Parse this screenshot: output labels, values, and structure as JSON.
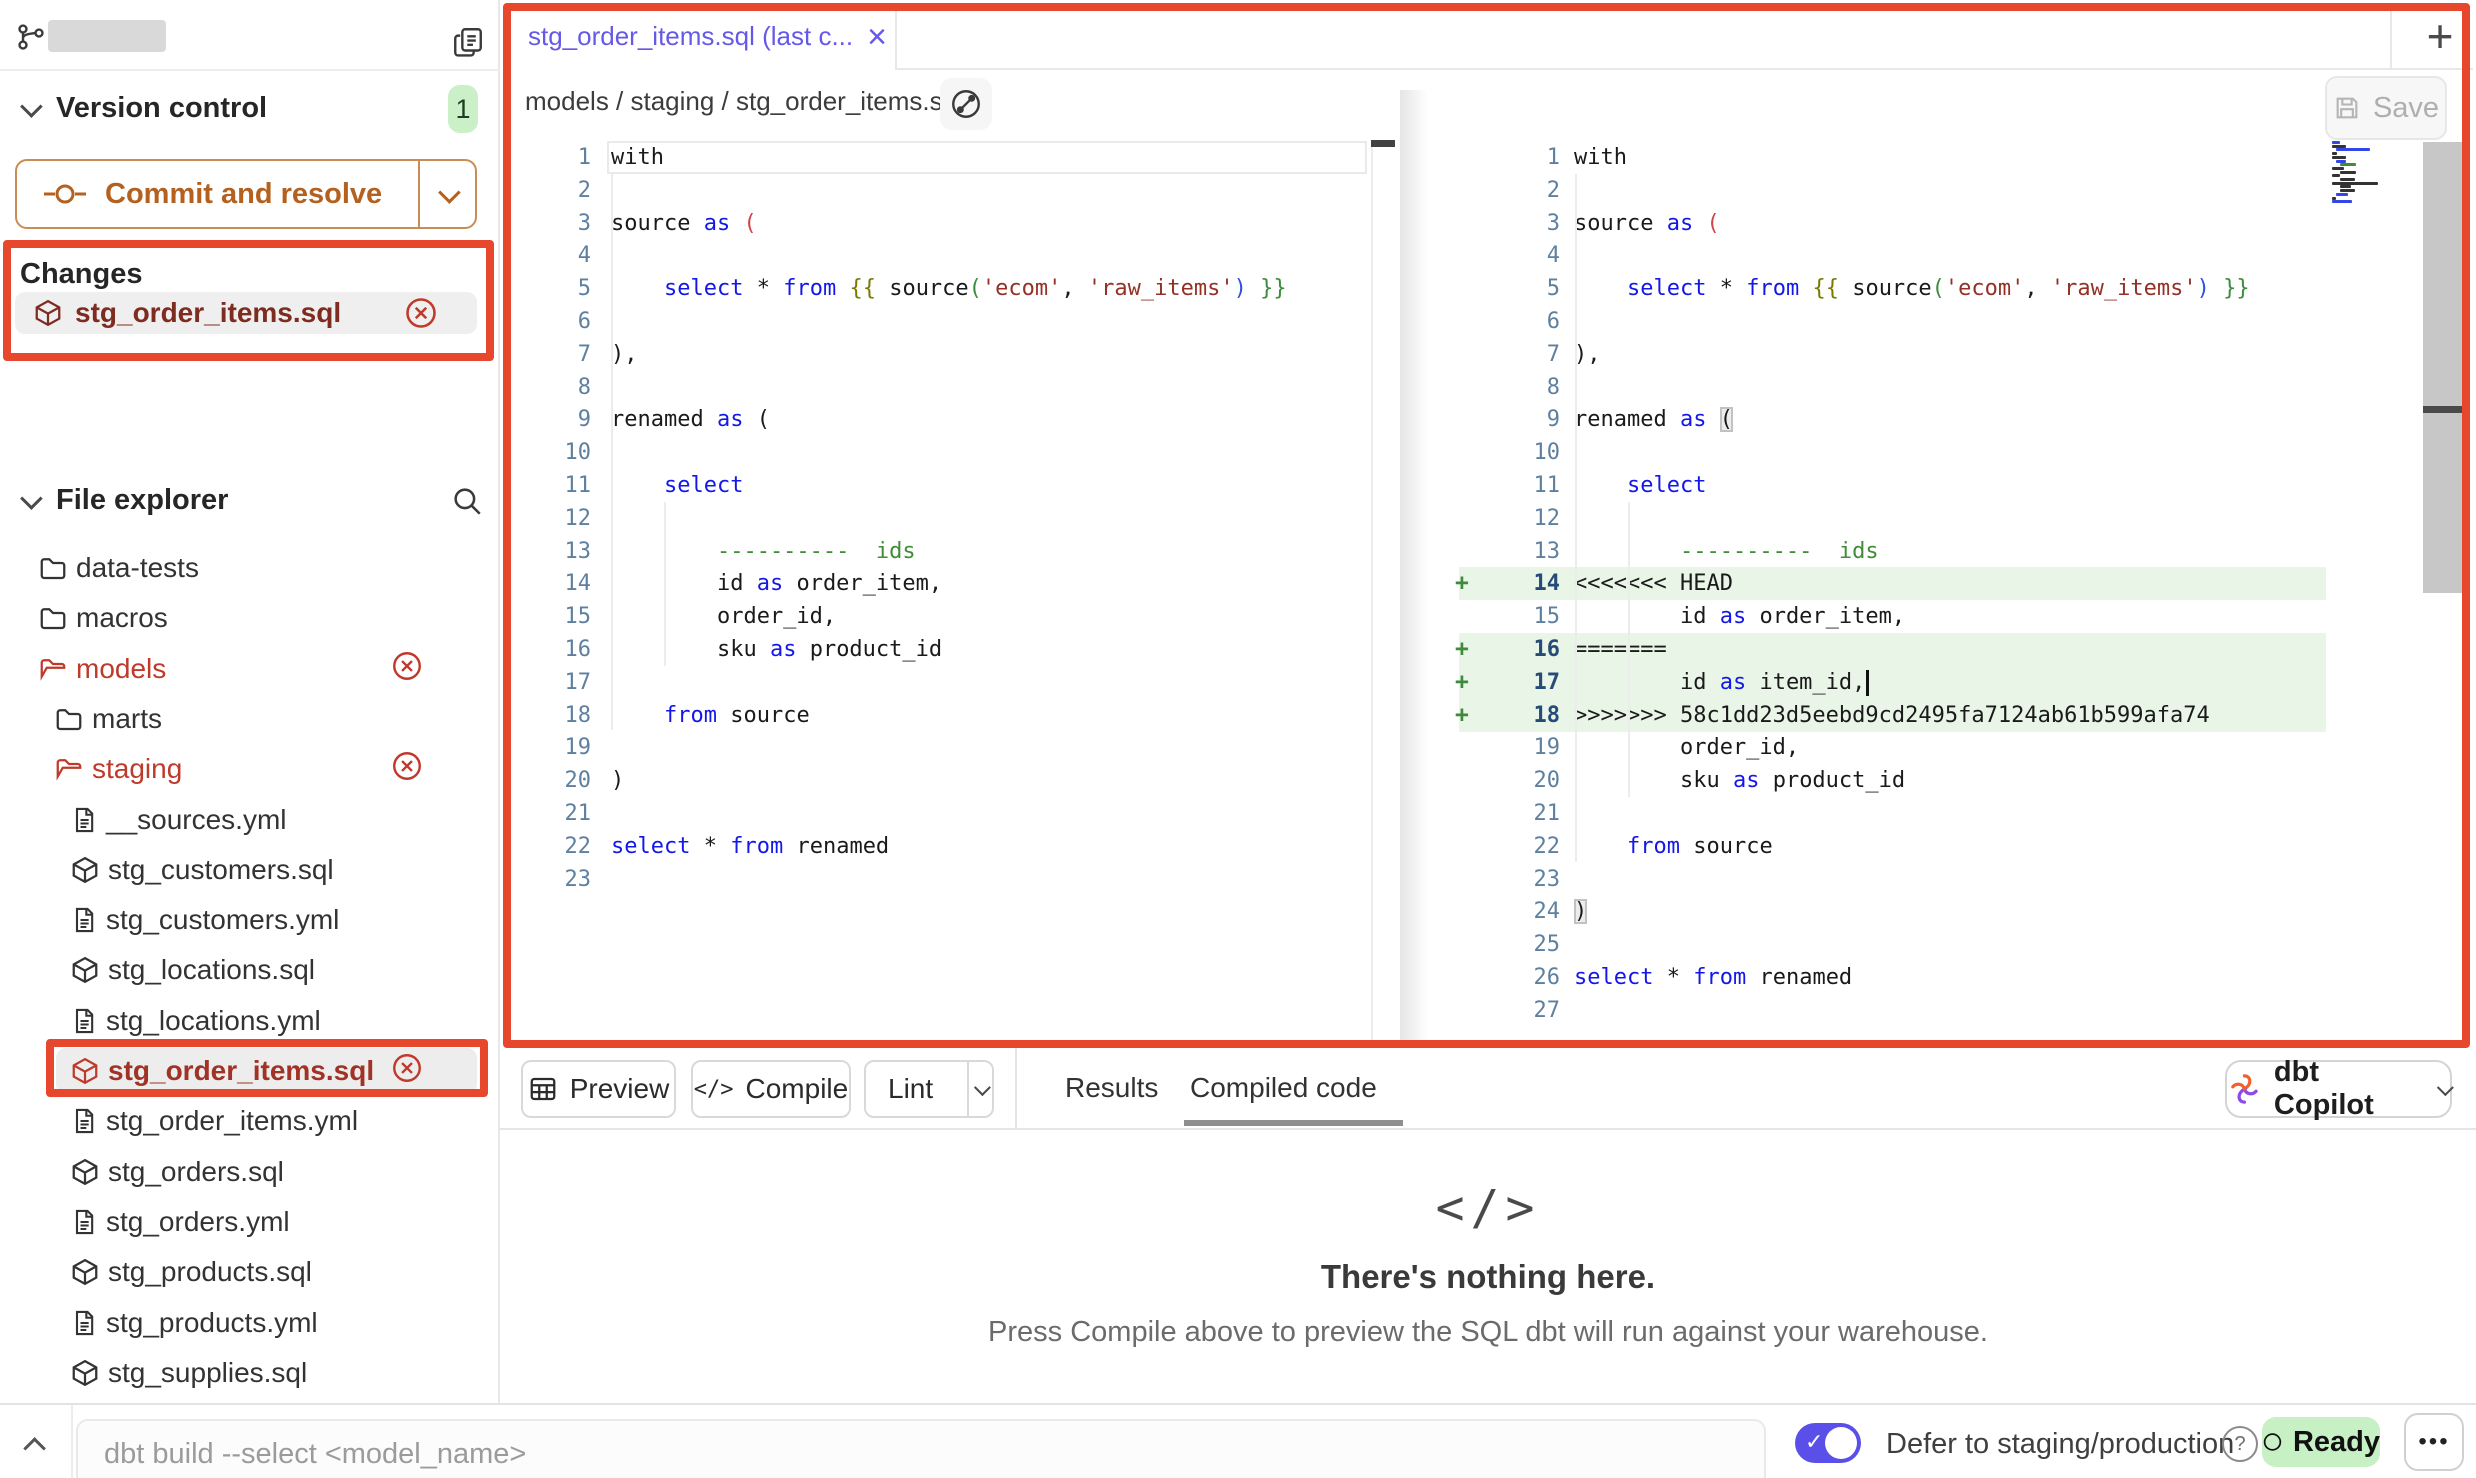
{
  "sidebar": {
    "version_control": {
      "title": "Version control",
      "badge": "1",
      "commit_button": "Commit and resolve"
    },
    "changes": {
      "label": "Changes",
      "file": "stg_order_items.sql"
    },
    "file_explorer": {
      "title": "File explorer",
      "items": [
        {
          "name": "data-tests",
          "type": "folder",
          "level": 1
        },
        {
          "name": "macros",
          "type": "folder",
          "level": 1
        },
        {
          "name": "models",
          "type": "folder-open",
          "level": 1,
          "modified": true
        },
        {
          "name": "marts",
          "type": "folder",
          "level": 2
        },
        {
          "name": "staging",
          "type": "folder-open",
          "level": 2,
          "modified": true
        },
        {
          "name": "__sources.yml",
          "type": "file",
          "level": 3
        },
        {
          "name": "stg_customers.sql",
          "type": "model",
          "level": 3
        },
        {
          "name": "stg_customers.yml",
          "type": "file",
          "level": 3
        },
        {
          "name": "stg_locations.sql",
          "type": "model",
          "level": 3
        },
        {
          "name": "stg_locations.yml",
          "type": "file",
          "level": 3
        },
        {
          "name": "stg_order_items.sql",
          "type": "model",
          "level": 3,
          "modified": true,
          "selected": true
        },
        {
          "name": "stg_order_items.yml",
          "type": "file",
          "level": 3
        },
        {
          "name": "stg_orders.sql",
          "type": "model",
          "level": 3
        },
        {
          "name": "stg_orders.yml",
          "type": "file",
          "level": 3
        },
        {
          "name": "stg_products.sql",
          "type": "model",
          "level": 3
        },
        {
          "name": "stg_products.yml",
          "type": "file",
          "level": 3
        },
        {
          "name": "stg_supplies.sql",
          "type": "model",
          "level": 3
        }
      ]
    }
  },
  "main": {
    "tab": {
      "title": "stg_order_items.sql (last c...",
      "close": "×"
    },
    "new_tab": "+",
    "breadcrumb": "models / staging / stg_order_items.sql",
    "save_label": "Save",
    "toolbar": {
      "preview": "Preview",
      "compile": "Compile",
      "compile_icon": "</>",
      "lint": "Lint",
      "tabs": [
        {
          "label": "Results",
          "active": false
        },
        {
          "label": "Compiled code",
          "active": true
        }
      ],
      "copilot": "dbt Copilot"
    },
    "empty": {
      "icon": "</>",
      "title": "There's nothing here.",
      "description": "Press Compile above to preview the SQL dbt will run against your warehouse."
    }
  },
  "editor": {
    "left": {
      "lines": [
        {
          "n": 1,
          "box": true,
          "t": [
            [
              "p",
              "with"
            ]
          ]
        },
        {
          "n": 2,
          "t": []
        },
        {
          "n": 3,
          "t": [
            [
              "p",
              "source "
            ],
            [
              "k",
              "as"
            ],
            [
              "p",
              " "
            ],
            [
              "r",
              "("
            ]
          ]
        },
        {
          "n": 4,
          "t": []
        },
        {
          "n": 5,
          "t": [
            [
              "p",
              "    "
            ],
            [
              "k",
              "select"
            ],
            [
              "p",
              " * "
            ],
            [
              "k",
              "from"
            ],
            [
              "p",
              " "
            ],
            [
              "j",
              "{{"
            ],
            [
              "p",
              " source"
            ],
            [
              "g",
              "("
            ],
            [
              "s",
              "'ecom'"
            ],
            [
              "p",
              ", "
            ],
            [
              "s",
              "'raw_items'"
            ],
            [
              "b",
              ")"
            ],
            [
              "p",
              " "
            ],
            [
              "g",
              "}}"
            ]
          ]
        },
        {
          "n": 6,
          "t": []
        },
        {
          "n": 7,
          "t": [
            [
              "p",
              "),"
            ]
          ]
        },
        {
          "n": 8,
          "t": []
        },
        {
          "n": 9,
          "t": [
            [
              "p",
              "renamed "
            ],
            [
              "k",
              "as"
            ],
            [
              "p",
              " ("
            ]
          ]
        },
        {
          "n": 10,
          "t": []
        },
        {
          "n": 11,
          "t": [
            [
              "p",
              "    "
            ],
            [
              "k",
              "select"
            ]
          ]
        },
        {
          "n": 12,
          "t": []
        },
        {
          "n": 13,
          "t": [
            [
              "c",
              "        ----------  ids"
            ]
          ]
        },
        {
          "n": 14,
          "t": [
            [
              "p",
              "        id "
            ],
            [
              "k",
              "as"
            ],
            [
              "p",
              " order_item,"
            ]
          ]
        },
        {
          "n": 15,
          "t": [
            [
              "p",
              "        order_id,"
            ]
          ]
        },
        {
          "n": 16,
          "t": [
            [
              "p",
              "        sku "
            ],
            [
              "k",
              "as"
            ],
            [
              "p",
              " product_id"
            ]
          ]
        },
        {
          "n": 17,
          "t": []
        },
        {
          "n": 18,
          "t": [
            [
              "p",
              "    "
            ],
            [
              "k",
              "from"
            ],
            [
              "p",
              " source"
            ]
          ]
        },
        {
          "n": 19,
          "t": []
        },
        {
          "n": 20,
          "t": [
            [
              "p",
              ")"
            ]
          ]
        },
        {
          "n": 21,
          "t": []
        },
        {
          "n": 22,
          "t": [
            [
              "k",
              "select"
            ],
            [
              "p",
              " * "
            ],
            [
              "k",
              "from"
            ],
            [
              "p",
              " renamed"
            ]
          ]
        },
        {
          "n": 23,
          "t": []
        }
      ]
    },
    "right": {
      "lines": [
        {
          "n": 1,
          "t": [
            [
              "p",
              "with"
            ]
          ]
        },
        {
          "n": 2,
          "t": []
        },
        {
          "n": 3,
          "t": [
            [
              "p",
              "source "
            ],
            [
              "k",
              "as"
            ],
            [
              "p",
              " "
            ],
            [
              "r",
              "("
            ]
          ]
        },
        {
          "n": 4,
          "t": []
        },
        {
          "n": 5,
          "t": [
            [
              "p",
              "    "
            ],
            [
              "k",
              "select"
            ],
            [
              "p",
              " * "
            ],
            [
              "k",
              "from"
            ],
            [
              "p",
              " "
            ],
            [
              "j",
              "{{"
            ],
            [
              "p",
              " source"
            ],
            [
              "g",
              "("
            ],
            [
              "s",
              "'ecom'"
            ],
            [
              "p",
              ", "
            ],
            [
              "s",
              "'raw_items'"
            ],
            [
              "b",
              ")"
            ],
            [
              "p",
              " "
            ],
            [
              "g",
              "}}"
            ]
          ]
        },
        {
          "n": 6,
          "t": []
        },
        {
          "n": 7,
          "t": [
            [
              "p",
              "),"
            ]
          ]
        },
        {
          "n": 8,
          "t": []
        },
        {
          "n": 9,
          "t": [
            [
              "p",
              "renamed "
            ],
            [
              "k",
              "as"
            ],
            [
              "p",
              " "
            ],
            [
              "m",
              "("
            ]
          ]
        },
        {
          "n": 10,
          "t": []
        },
        {
          "n": 11,
          "t": [
            [
              "p",
              "    "
            ],
            [
              "k",
              "select"
            ]
          ]
        },
        {
          "n": 12,
          "t": []
        },
        {
          "n": 13,
          "t": [
            [
              "c",
              "        ----------  ids"
            ]
          ]
        },
        {
          "n": 14,
          "add": true,
          "t": [
            [
              "p",
              "<<<<<<< HEAD"
            ]
          ]
        },
        {
          "n": 15,
          "t": [
            [
              "p",
              "        id "
            ],
            [
              "k",
              "as"
            ],
            [
              "p",
              " order_item,"
            ]
          ]
        },
        {
          "n": 16,
          "add": true,
          "t": [
            [
              "p",
              "======="
            ]
          ]
        },
        {
          "n": 17,
          "add": true,
          "cur": true,
          "t": [
            [
              "p",
              "        id "
            ],
            [
              "k",
              "as"
            ],
            [
              "p",
              " item_id,"
            ]
          ]
        },
        {
          "n": 18,
          "add": true,
          "t": [
            [
              "p",
              ">>>>>>> 58c1dd23d5eebd9cd2495fa7124ab61b599afa74"
            ]
          ]
        },
        {
          "n": 19,
          "t": [
            [
              "p",
              "        order_id,"
            ]
          ]
        },
        {
          "n": 20,
          "t": [
            [
              "p",
              "        sku "
            ],
            [
              "k",
              "as"
            ],
            [
              "p",
              " product_id"
            ]
          ]
        },
        {
          "n": 21,
          "t": []
        },
        {
          "n": 22,
          "t": [
            [
              "p",
              "    "
            ],
            [
              "k",
              "from"
            ],
            [
              "p",
              " source"
            ]
          ]
        },
        {
          "n": 23,
          "t": []
        },
        {
          "n": 24,
          "t": [
            [
              "m",
              ")"
            ]
          ]
        },
        {
          "n": 25,
          "t": []
        },
        {
          "n": 26,
          "t": [
            [
              "k",
              "select"
            ],
            [
              "p",
              " * "
            ],
            [
              "k",
              "from"
            ],
            [
              "p",
              " renamed"
            ]
          ]
        },
        {
          "n": 27,
          "t": []
        }
      ]
    }
  },
  "statusbar": {
    "command_placeholder": "dbt build --select <model_name>",
    "defer_label": "Defer to staging/production",
    "help_icon": "?",
    "ready_label": "Ready",
    "dots": "•••",
    "toggle_on": true
  },
  "colors": {
    "annotation": "#E7472C",
    "keyword_blue": "#1318E8",
    "string_red": "#943126",
    "comment_green": "#418C37",
    "added_line_bg": "#E9F6E7",
    "accent_indigo": "#6659E8",
    "dbt_orange": "#B4611F",
    "modified_red": "#BE3A2B",
    "ready_green": "#C7F0C5"
  }
}
